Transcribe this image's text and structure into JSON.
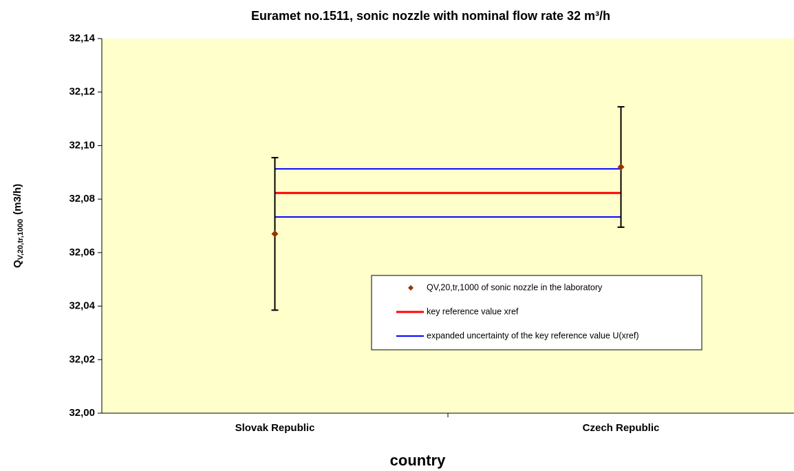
{
  "chart_data": {
    "type": "errorbar",
    "title": "Euramet no.1511, sonic nozzle with nominal flow rate 32 m³/h",
    "ylabel_main": "Q",
    "ylabel_sub": "V,20,tr,1000",
    "ylabel_unit": "(m3/h)",
    "xlabel": "country",
    "categories": [
      "Slovak Republic",
      "Czech Republic"
    ],
    "series": [
      {
        "name": "QV,20,tr,1000  of sonic nozzle in the laboratory",
        "color": "#993300",
        "values": [
          32.067,
          32.092
        ],
        "errors": [
          0.0285,
          0.0225
        ]
      }
    ],
    "reference": {
      "name": "key reference value xref",
      "color": "#ff0000",
      "value": 32.0823
    },
    "uncertainty": {
      "name": "expanded uncertainty of the key reference value U(xref)",
      "color": "#0000ff",
      "values": [
        32.0913,
        32.0733
      ]
    },
    "ylim": [
      32.0,
      32.14
    ],
    "yticks": [
      {
        "value": 32.0,
        "label": "32,00"
      },
      {
        "value": 32.02,
        "label": "32,02"
      },
      {
        "value": 32.04,
        "label": "32,04"
      },
      {
        "value": 32.06,
        "label": "32,06"
      },
      {
        "value": 32.08,
        "label": "32,08"
      },
      {
        "value": 32.1,
        "label": "32,10"
      },
      {
        "value": 32.12,
        "label": "32,12"
      },
      {
        "value": 32.14,
        "label": "32,14"
      }
    ],
    "plot_background": "#ffffcc"
  }
}
